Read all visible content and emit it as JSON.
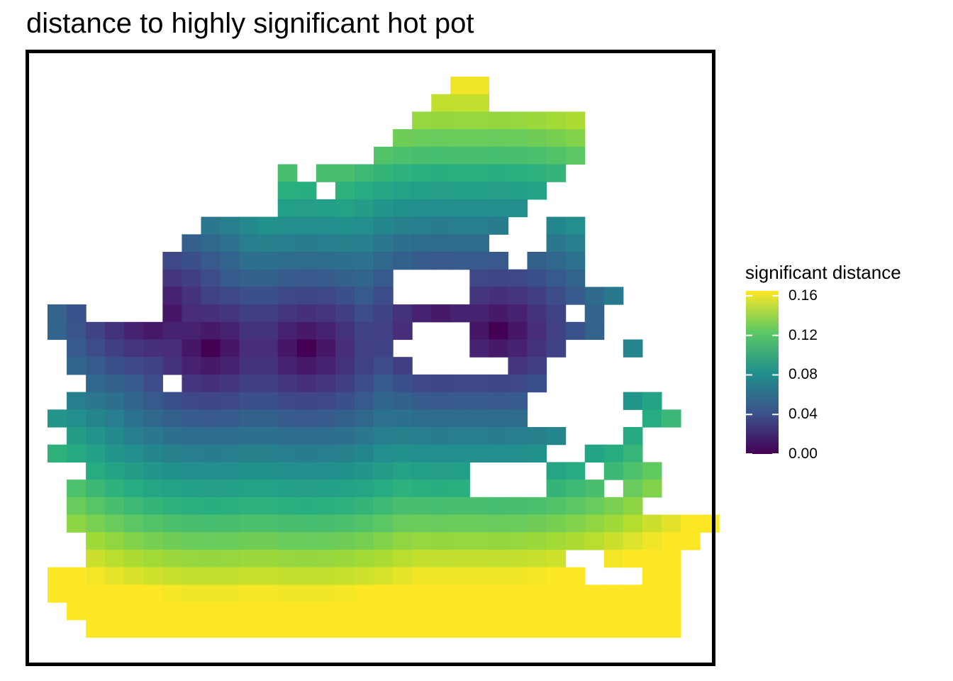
{
  "chart_data": {
    "type": "heatmap",
    "title": "distance to highly significant hot pot",
    "xlabel": "",
    "ylabel": "",
    "grid": false,
    "legend": {
      "title": "significant distance",
      "placement": "right",
      "ticks": [
        "0.00",
        "0.04",
        "0.08",
        "0.12",
        "0.16"
      ],
      "tick_values": [
        0.0,
        0.04,
        0.08,
        0.12,
        0.16
      ],
      "range": [
        0.0,
        0.165
      ]
    },
    "colormap": "viridis",
    "colors": [
      "#440154",
      "#3b528b",
      "#21908c",
      "#5dc963",
      "#fde725"
    ],
    "grid_cols": 35,
    "grid_rows": 32,
    "cells": [
      [
        21,
        0,
        22,
        0
      ],
      [
        20,
        1,
        22,
        1
      ],
      [
        19,
        2,
        27,
        2
      ],
      [
        18,
        3,
        27,
        3
      ],
      [
        17,
        4,
        27,
        4
      ],
      [
        12,
        5,
        12,
        5
      ],
      [
        14,
        5,
        26,
        5
      ],
      [
        12,
        6,
        13,
        6
      ],
      [
        15,
        6,
        25,
        6
      ],
      [
        12,
        7,
        24,
        7
      ],
      [
        8,
        8,
        23,
        8
      ],
      [
        26,
        8,
        27,
        8
      ],
      [
        7,
        9,
        22,
        9
      ],
      [
        26,
        9,
        27,
        9
      ],
      [
        6,
        10,
        23,
        10
      ],
      [
        25,
        10,
        27,
        10
      ],
      [
        6,
        11,
        26,
        11
      ],
      [
        26,
        11,
        27,
        11
      ],
      [
        6,
        12,
        27,
        12
      ],
      [
        28,
        12,
        29,
        12
      ],
      [
        0,
        13,
        1,
        13
      ],
      [
        6,
        13,
        26,
        13
      ],
      [
        28,
        13,
        28,
        13
      ],
      [
        0,
        14,
        26,
        14
      ],
      [
        27,
        14,
        28,
        14
      ],
      [
        1,
        15,
        17,
        15
      ],
      [
        22,
        15,
        26,
        15
      ],
      [
        30,
        15,
        30,
        15
      ],
      [
        1,
        16,
        21,
        16
      ],
      [
        24,
        16,
        25,
        16
      ],
      [
        2,
        17,
        25,
        17
      ],
      [
        1,
        18,
        24,
        18
      ],
      [
        30,
        18,
        31,
        18
      ],
      [
        0,
        19,
        24,
        19
      ],
      [
        31,
        19,
        32,
        19
      ],
      [
        1,
        20,
        26,
        20
      ],
      [
        30,
        20,
        30,
        20
      ],
      [
        0,
        21,
        25,
        21
      ],
      [
        28,
        21,
        30,
        21
      ],
      [
        2,
        22,
        27,
        22
      ],
      [
        29,
        22,
        31,
        22
      ],
      [
        1,
        23,
        28,
        23
      ],
      [
        30,
        23,
        31,
        23
      ],
      [
        1,
        24,
        30,
        24
      ],
      [
        1,
        25,
        34,
        25
      ],
      [
        2,
        26,
        33,
        26
      ],
      [
        2,
        27,
        32,
        27
      ],
      [
        0,
        28,
        32,
        28
      ],
      [
        0,
        29,
        32,
        29
      ],
      [
        1,
        30,
        32,
        30
      ],
      [
        2,
        31,
        32,
        31
      ]
    ]
  }
}
